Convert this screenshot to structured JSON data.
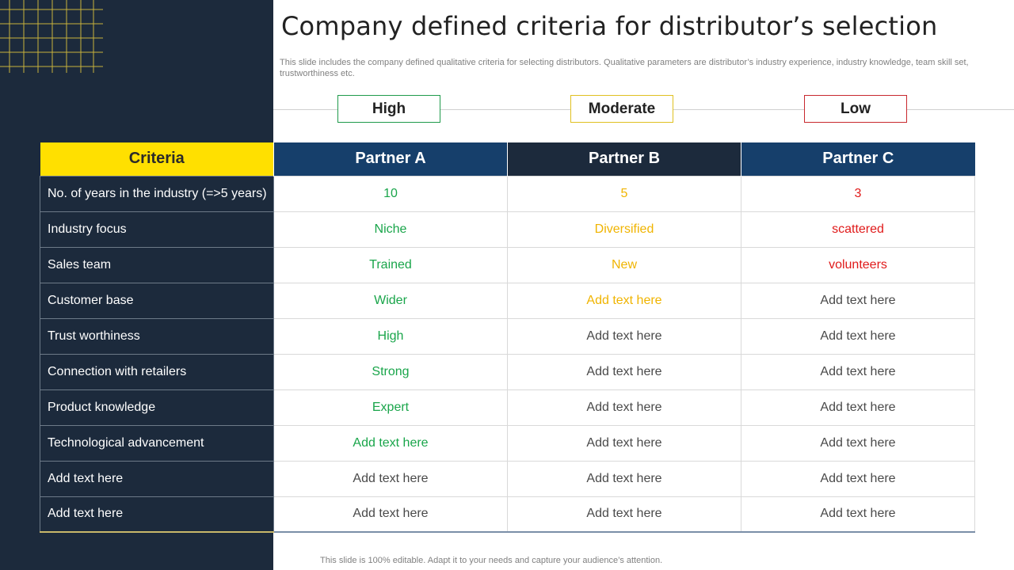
{
  "title": "Company defined criteria for distributor’s selection",
  "subtitle": "This slide includes the company defined qualitative criteria for selecting distributors. Qualitative parameters are distributor’s industry experience, industry knowledge, team skill set, trustworthiness etc.",
  "legend": {
    "high": "High",
    "moderate": "Moderate",
    "low": "Low"
  },
  "colors": {
    "high": "#19a54a",
    "moderate": "#f0b400",
    "low": "#e01a1a",
    "panel": "#1c2a3c",
    "accent": "#ffe000"
  },
  "table": {
    "headers": [
      "Criteria",
      "Partner A",
      "Partner B",
      "Partner C"
    ],
    "rows": [
      {
        "criteria": "No. of years in the industry (=>5 years)",
        "a": "10",
        "b": "5",
        "c": "3"
      },
      {
        "criteria": "Industry  focus",
        "a": "Niche",
        "b": "Diversified",
        "c": "scattered"
      },
      {
        "criteria": "Sales team",
        "a": "Trained",
        "b": "New",
        "c": "volunteers"
      },
      {
        "criteria": "Customer base",
        "a": "Wider",
        "b": "Add text here",
        "c": "Add text here"
      },
      {
        "criteria": "Trust worthiness",
        "a": "High",
        "b": "Add text here",
        "c": "Add text here"
      },
      {
        "criteria": "Connection with retailers",
        "a": "Strong",
        "b": "Add text here",
        "c": "Add text here"
      },
      {
        "criteria": "Product knowledge",
        "a": "Expert",
        "b": "Add text here",
        "c": "Add text here"
      },
      {
        "criteria": "Technological advancement",
        "a": "Add text here",
        "b": "Add text here",
        "c": "Add text here"
      },
      {
        "criteria": "Add text here",
        "a": "Add text here",
        "b": "Add text here",
        "c": "Add text here"
      },
      {
        "criteria": "Add text here",
        "a": "Add text here",
        "b": "Add text here",
        "c": "Add text here"
      }
    ]
  },
  "footer": "This slide is 100% editable. Adapt it to your needs and capture your audience’s attention."
}
